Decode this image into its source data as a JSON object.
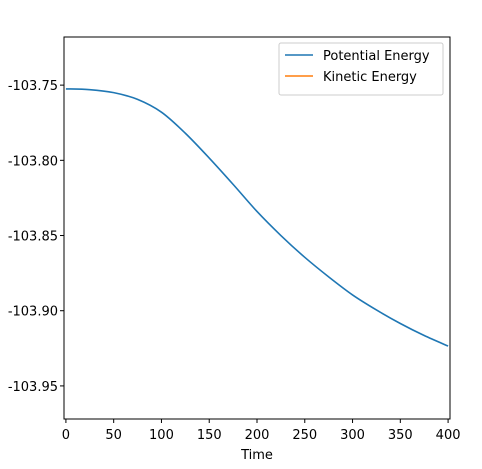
{
  "chart_data": {
    "type": "line",
    "title": "",
    "xlabel": "Time",
    "ylabel": "",
    "xlim": [
      -2,
      402
    ],
    "ylim": [
      -103.972,
      -103.718
    ],
    "xticks": [
      0,
      50,
      100,
      150,
      200,
      250,
      300,
      350,
      400
    ],
    "xtick_labels": [
      "0",
      "50",
      "100",
      "150",
      "200",
      "250",
      "300",
      "350",
      "400"
    ],
    "yticks": [
      -103.75,
      -103.8,
      -103.85,
      -103.9,
      -103.95
    ],
    "ytick_labels": [
      "-103.75",
      "-103.80",
      "-103.85",
      "-103.90",
      "-103.95"
    ],
    "grid": false,
    "legend_position": "top-right",
    "series": [
      {
        "name": "Potential Energy",
        "color": "#1f77b4",
        "x": [
          0,
          25,
          50,
          75,
          100,
          125,
          150,
          175,
          200,
          225,
          250,
          275,
          300,
          325,
          350,
          375,
          400
        ],
        "y": [
          -103.7525,
          -103.753,
          -103.755,
          -103.7595,
          -103.768,
          -103.782,
          -103.7985,
          -103.816,
          -103.834,
          -103.85,
          -103.8645,
          -103.8775,
          -103.8895,
          -103.8995,
          -103.9085,
          -103.9165,
          -103.9235
        ]
      },
      {
        "name": "Kinetic Energy",
        "color": "#ff7f0e",
        "x": [],
        "y": []
      }
    ]
  }
}
